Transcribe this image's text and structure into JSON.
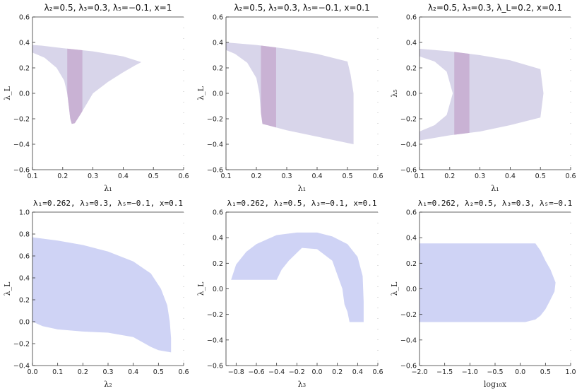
{
  "chart_data": [
    {
      "type": "area",
      "title": "λ₂=0.5, λ₃=0.3, λ₅=−0.1, x=1",
      "xlabel": "λ₁",
      "ylabel": "λ_L",
      "xlim": [
        0.1,
        0.6
      ],
      "ylim": [
        -0.6,
        0.6
      ],
      "xticks": [
        "0.1",
        "0.2",
        "0.3",
        "0.4",
        "0.5",
        "0.6"
      ],
      "yticks": [
        "−0.6",
        "−0.4",
        "−0.2",
        "0.0",
        "0.2",
        "0.4",
        "0.6"
      ],
      "fill_color": "#d8d5ea",
      "band_color": "#c7acd0",
      "region": [
        [
          0.1,
          0.38
        ],
        [
          0.13,
          0.375
        ],
        [
          0.2,
          0.355
        ],
        [
          0.3,
          0.33
        ],
        [
          0.4,
          0.29
        ],
        [
          0.46,
          0.245
        ],
        [
          0.44,
          0.22
        ],
        [
          0.4,
          0.165
        ],
        [
          0.35,
          0.09
        ],
        [
          0.3,
          0.0
        ],
        [
          0.26,
          -0.16
        ],
        [
          0.24,
          -0.235
        ],
        [
          0.23,
          -0.24
        ],
        [
          0.225,
          -0.2
        ],
        [
          0.22,
          -0.1
        ],
        [
          0.215,
          0.0
        ],
        [
          0.205,
          0.1
        ],
        [
          0.18,
          0.2
        ],
        [
          0.14,
          0.28
        ],
        [
          0.1,
          0.32
        ]
      ],
      "band": [
        0.215,
        0.265
      ]
    },
    {
      "type": "area",
      "title": "λ₂=0.5, λ₃=0.3, λ₅=−0.1, x=0.1",
      "xlabel": "λ₁",
      "ylabel": "λ_L",
      "xlim": [
        0.1,
        0.6
      ],
      "ylim": [
        -0.6,
        0.6
      ],
      "xticks": [
        "0.1",
        "0.2",
        "0.3",
        "0.4",
        "0.5",
        "0.6"
      ],
      "yticks": [
        "−0.6",
        "−0.4",
        "−0.2",
        "0.0",
        "0.2",
        "0.4",
        "0.6"
      ],
      "fill_color": "#d8d5ea",
      "band_color": "#c7acd0",
      "region": [
        [
          0.1,
          0.4
        ],
        [
          0.2,
          0.38
        ],
        [
          0.3,
          0.35
        ],
        [
          0.4,
          0.31
        ],
        [
          0.5,
          0.25
        ],
        [
          0.51,
          0.15
        ],
        [
          0.52,
          0.0
        ],
        [
          0.52,
          -0.2
        ],
        [
          0.52,
          -0.4
        ],
        [
          0.4,
          -0.34
        ],
        [
          0.3,
          -0.29
        ],
        [
          0.22,
          -0.24
        ],
        [
          0.215,
          -0.15
        ],
        [
          0.21,
          0.0
        ],
        [
          0.2,
          0.12
        ],
        [
          0.17,
          0.24
        ],
        [
          0.13,
          0.31
        ],
        [
          0.1,
          0.34
        ]
      ],
      "band": [
        0.215,
        0.265
      ]
    },
    {
      "type": "area",
      "title": "λ₂=0.5, λ₃=0.3, λ_L=0.2, x=0.1",
      "xlabel": "λ₁",
      "ylabel": "λ₅",
      "xlim": [
        0.1,
        0.6
      ],
      "ylim": [
        -0.6,
        0.6
      ],
      "xticks": [
        "0.1",
        "0.2",
        "0.3",
        "0.4",
        "0.5",
        "0.6"
      ],
      "yticks": [
        "−0.6",
        "−0.4",
        "−0.2",
        "0.0",
        "0.2",
        "0.4",
        "0.6"
      ],
      "fill_color": "#d8d5ea",
      "band_color": "#c7acd0",
      "region": [
        [
          0.1,
          0.35
        ],
        [
          0.2,
          0.33
        ],
        [
          0.3,
          0.3
        ],
        [
          0.4,
          0.26
        ],
        [
          0.5,
          0.19
        ],
        [
          0.51,
          0.0
        ],
        [
          0.5,
          -0.19
        ],
        [
          0.4,
          -0.25
        ],
        [
          0.3,
          -0.3
        ],
        [
          0.2,
          -0.33
        ],
        [
          0.1,
          -0.37
        ],
        [
          0.1,
          -0.3
        ],
        [
          0.15,
          -0.25
        ],
        [
          0.19,
          -0.17
        ],
        [
          0.21,
          0.0
        ],
        [
          0.19,
          0.17
        ],
        [
          0.15,
          0.25
        ],
        [
          0.1,
          0.29
        ]
      ],
      "band": [
        0.215,
        0.265
      ]
    },
    {
      "type": "area",
      "title": "λ₁=0.262, λ₃=0.3, λ₅=−0.1, x=0.1",
      "xlabel": "λ₂",
      "ylabel": "λ_L",
      "xlim": [
        0.0,
        0.6
      ],
      "ylim": [
        -0.4,
        1.0
      ],
      "xticks": [
        "0.0",
        "0.1",
        "0.2",
        "0.3",
        "0.4",
        "0.5",
        "0.6"
      ],
      "yticks": [
        "−0.4",
        "−0.2",
        "0.0",
        "0.2",
        "0.4",
        "0.6",
        "0.8",
        "1.0"
      ],
      "fill_color": "#cfd3f5",
      "region": [
        [
          0.0,
          0.77
        ],
        [
          0.1,
          0.74
        ],
        [
          0.2,
          0.7
        ],
        [
          0.3,
          0.64
        ],
        [
          0.4,
          0.55
        ],
        [
          0.47,
          0.44
        ],
        [
          0.51,
          0.3
        ],
        [
          0.535,
          0.15
        ],
        [
          0.545,
          0.0
        ],
        [
          0.55,
          -0.15
        ],
        [
          0.55,
          -0.28
        ],
        [
          0.5,
          -0.26
        ],
        [
          0.47,
          -0.23
        ],
        [
          0.4,
          -0.14
        ],
        [
          0.3,
          -0.1
        ],
        [
          0.2,
          -0.09
        ],
        [
          0.1,
          -0.07
        ],
        [
          0.04,
          -0.04
        ],
        [
          0.0,
          0.0
        ]
      ]
    },
    {
      "type": "area",
      "title": "λ₁=0.262, λ₂=0.5, λ₃=−0.1, x=0.1",
      "xlabel": "λ₃",
      "ylabel": "λ_L",
      "xlim": [
        -0.9,
        0.6
      ],
      "ylim": [
        -0.6,
        0.6
      ],
      "xticks": [
        "−0.8",
        "−0.6",
        "−0.4",
        "−0.2",
        "0.0",
        "0.2",
        "0.4",
        "0.6"
      ],
      "yticks": [
        "−0.6",
        "−0.4",
        "−0.2",
        "0.0",
        "0.2",
        "0.4",
        "0.6"
      ],
      "fill_color": "#cfd3f5",
      "region": [
        [
          -0.85,
          0.07
        ],
        [
          -0.8,
          0.19
        ],
        [
          -0.7,
          0.29
        ],
        [
          -0.6,
          0.35
        ],
        [
          -0.4,
          0.42
        ],
        [
          -0.2,
          0.44
        ],
        [
          0.0,
          0.44
        ],
        [
          0.15,
          0.41
        ],
        [
          0.3,
          0.35
        ],
        [
          0.4,
          0.25
        ],
        [
          0.45,
          0.1
        ],
        [
          0.46,
          -0.1
        ],
        [
          0.46,
          -0.26
        ],
        [
          0.32,
          -0.26
        ],
        [
          0.3,
          -0.18
        ],
        [
          0.27,
          -0.12
        ],
        [
          0.25,
          0.0
        ],
        [
          0.15,
          0.22
        ],
        [
          0.0,
          0.31
        ],
        [
          -0.15,
          0.32
        ],
        [
          -0.28,
          0.22
        ],
        [
          -0.35,
          0.15
        ],
        [
          -0.4,
          0.07
        ]
      ]
    },
    {
      "type": "area",
      "title": "λ₁=0.262, λ₂=0.5, λ₃=0.3, λ₅=−0.1",
      "xlabel": "log₁₀x",
      "ylabel": "λ_L",
      "xlim": [
        -2.0,
        1.0
      ],
      "ylim": [
        -0.6,
        0.6
      ],
      "xticks": [
        "−2.0",
        "−1.5",
        "−1.0",
        "−0.5",
        "0.0",
        "0.5",
        "1.0"
      ],
      "yticks": [
        "−0.6",
        "−0.4",
        "−0.2",
        "0.0",
        "0.2",
        "0.4",
        "0.6"
      ],
      "fill_color": "#cfd3f5",
      "region": [
        [
          -2.0,
          0.355
        ],
        [
          0.3,
          0.355
        ],
        [
          0.4,
          0.3
        ],
        [
          0.5,
          0.22
        ],
        [
          0.6,
          0.15
        ],
        [
          0.7,
          0.05
        ],
        [
          0.68,
          -0.02
        ],
        [
          0.58,
          -0.1
        ],
        [
          0.5,
          -0.16
        ],
        [
          0.4,
          -0.21
        ],
        [
          0.3,
          -0.24
        ],
        [
          0.1,
          -0.26
        ],
        [
          -0.5,
          -0.26
        ],
        [
          -2.0,
          -0.26
        ]
      ]
    }
  ]
}
